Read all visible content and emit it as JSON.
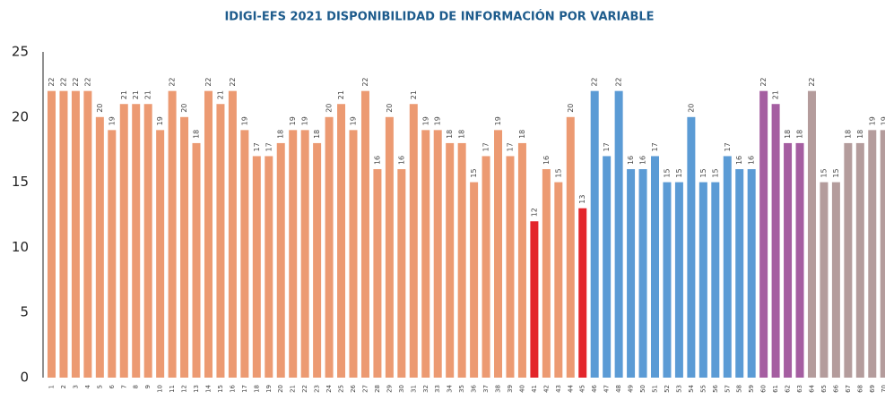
{
  "chart_data": {
    "type": "bar",
    "title": "IDIGI-EFS 2021 DISPONIBILIDAD DE INFORMACIÓN POR VARIABLE",
    "categories": [
      "1",
      "2",
      "3",
      "4",
      "5",
      "6",
      "7",
      "8",
      "9",
      "10",
      "11",
      "12",
      "13",
      "14",
      "15",
      "16",
      "17",
      "18",
      "19",
      "20",
      "21",
      "22",
      "23",
      "24",
      "25",
      "26",
      "27",
      "28",
      "29",
      "30",
      "31",
      "32",
      "33",
      "34",
      "35",
      "36",
      "37",
      "38",
      "39",
      "40",
      "41",
      "42",
      "43",
      "44",
      "45",
      "46",
      "47",
      "48",
      "49",
      "50",
      "51",
      "52",
      "53",
      "54",
      "55",
      "56",
      "57",
      "58",
      "59",
      "60",
      "61",
      "62",
      "63",
      "64",
      "65",
      "66",
      "67",
      "68",
      "69",
      "70"
    ],
    "values": [
      22,
      22,
      22,
      22,
      20,
      19,
      21,
      21,
      21,
      19,
      22,
      20,
      18,
      22,
      21,
      22,
      19,
      17,
      17,
      18,
      19,
      19,
      18,
      20,
      21,
      19,
      22,
      16,
      20,
      16,
      21,
      19,
      19,
      18,
      18,
      15,
      17,
      19,
      17,
      18,
      12,
      16,
      15,
      20,
      13,
      22,
      17,
      22,
      16,
      16,
      17,
      15,
      15,
      20,
      15,
      15,
      17,
      16,
      16,
      22,
      21,
      18,
      18,
      22,
      15,
      15,
      18,
      18,
      19,
      19
    ],
    "colors": [
      "#ec9a72",
      "#ec9a72",
      "#ec9a72",
      "#ec9a72",
      "#ec9a72",
      "#ec9a72",
      "#ec9a72",
      "#ec9a72",
      "#ec9a72",
      "#ec9a72",
      "#ec9a72",
      "#ec9a72",
      "#ec9a72",
      "#ec9a72",
      "#ec9a72",
      "#ec9a72",
      "#ec9a72",
      "#ec9a72",
      "#ec9a72",
      "#ec9a72",
      "#ec9a72",
      "#ec9a72",
      "#ec9a72",
      "#ec9a72",
      "#ec9a72",
      "#ec9a72",
      "#ec9a72",
      "#ec9a72",
      "#ec9a72",
      "#ec9a72",
      "#ec9a72",
      "#ec9a72",
      "#ec9a72",
      "#ec9a72",
      "#ec9a72",
      "#ec9a72",
      "#ec9a72",
      "#ec9a72",
      "#ec9a72",
      "#ec9a72",
      "#e3262b",
      "#ec9a72",
      "#ec9a72",
      "#ec9a72",
      "#e3262b",
      "#5b9bd5",
      "#5b9bd5",
      "#5b9bd5",
      "#5b9bd5",
      "#5b9bd5",
      "#5b9bd5",
      "#5b9bd5",
      "#5b9bd5",
      "#5b9bd5",
      "#5b9bd5",
      "#5b9bd5",
      "#5b9bd5",
      "#5b9bd5",
      "#5b9bd5",
      "#a55ea1",
      "#a55ea1",
      "#a55ea1",
      "#a55ea1",
      "#b49c9c",
      "#b49c9c",
      "#b49c9c",
      "#b49c9c",
      "#b49c9c",
      "#b49c9c",
      "#b49c9c"
    ],
    "ylim": [
      0,
      25
    ],
    "yticks": [
      0,
      5,
      10,
      15,
      20,
      25
    ],
    "grid": false
  }
}
